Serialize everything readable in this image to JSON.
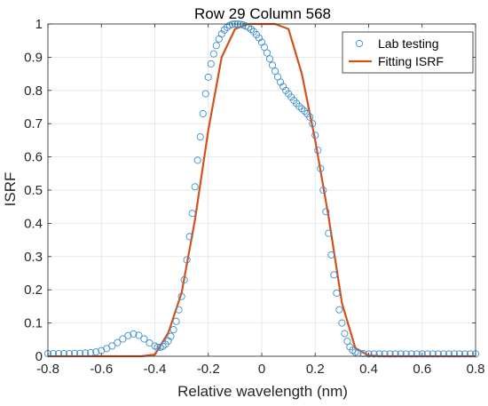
{
  "chart_data": {
    "type": "line",
    "title": "Row 29 Column 568",
    "xlabel": "Relative wavelength (nm)",
    "ylabel": "ISRF",
    "xlim": [
      -0.8,
      0.8
    ],
    "ylim": [
      0,
      1
    ],
    "xticks": [
      "-0.8",
      "-0.6",
      "-0.4",
      "-0.2",
      "0",
      "0.2",
      "0.4",
      "0.6",
      "0.8"
    ],
    "yticks": [
      "0",
      "0.1",
      "0.2",
      "0.3",
      "0.4",
      "0.5",
      "0.6",
      "0.7",
      "0.8",
      "0.9",
      "1"
    ],
    "grid": true,
    "legend_position": "top-right",
    "colors": {
      "lab": "#3d8ecb",
      "fit": "#d2511d"
    },
    "series": [
      {
        "name": "Lab testing",
        "marker": "circle",
        "x": [
          -0.8,
          -0.78,
          -0.76,
          -0.74,
          -0.72,
          -0.7,
          -0.68,
          -0.66,
          -0.64,
          -0.62,
          -0.6,
          -0.58,
          -0.56,
          -0.54,
          -0.52,
          -0.5,
          -0.48,
          -0.46,
          -0.44,
          -0.42,
          -0.4,
          -0.39,
          -0.38,
          -0.37,
          -0.36,
          -0.35,
          -0.34,
          -0.33,
          -0.32,
          -0.31,
          -0.3,
          -0.29,
          -0.28,
          -0.27,
          -0.26,
          -0.25,
          -0.24,
          -0.23,
          -0.22,
          -0.21,
          -0.2,
          -0.19,
          -0.18,
          -0.17,
          -0.16,
          -0.15,
          -0.14,
          -0.13,
          -0.12,
          -0.11,
          -0.1,
          -0.09,
          -0.08,
          -0.07,
          -0.06,
          -0.05,
          -0.04,
          -0.03,
          -0.02,
          -0.01,
          0.0,
          0.01,
          0.02,
          0.03,
          0.04,
          0.05,
          0.06,
          0.07,
          0.08,
          0.09,
          0.1,
          0.11,
          0.12,
          0.13,
          0.14,
          0.15,
          0.16,
          0.17,
          0.18,
          0.19,
          0.2,
          0.21,
          0.22,
          0.23,
          0.24,
          0.25,
          0.26,
          0.27,
          0.28,
          0.29,
          0.3,
          0.31,
          0.32,
          0.33,
          0.34,
          0.35,
          0.36,
          0.38,
          0.4,
          0.42,
          0.44,
          0.46,
          0.48,
          0.5,
          0.52,
          0.54,
          0.56,
          0.58,
          0.6,
          0.62,
          0.64,
          0.66,
          0.68,
          0.7,
          0.72,
          0.74,
          0.76,
          0.78,
          0.8
        ],
        "y": [
          0.008,
          0.008,
          0.008,
          0.008,
          0.008,
          0.009,
          0.009,
          0.01,
          0.011,
          0.013,
          0.017,
          0.023,
          0.031,
          0.041,
          0.052,
          0.062,
          0.067,
          0.063,
          0.052,
          0.04,
          0.031,
          0.027,
          0.027,
          0.03,
          0.036,
          0.046,
          0.06,
          0.08,
          0.105,
          0.14,
          0.18,
          0.23,
          0.29,
          0.36,
          0.43,
          0.51,
          0.59,
          0.66,
          0.73,
          0.79,
          0.84,
          0.88,
          0.91,
          0.935,
          0.955,
          0.97,
          0.982,
          0.99,
          0.996,
          0.999,
          1.0,
          1.0,
          0.999,
          0.997,
          0.994,
          0.99,
          0.984,
          0.977,
          0.968,
          0.958,
          0.945,
          0.93,
          0.913,
          0.895,
          0.876,
          0.858,
          0.841,
          0.825,
          0.812,
          0.8,
          0.79,
          0.78,
          0.77,
          0.761,
          0.752,
          0.745,
          0.738,
          0.73,
          0.72,
          0.7,
          0.665,
          0.62,
          0.565,
          0.5,
          0.435,
          0.37,
          0.305,
          0.245,
          0.19,
          0.14,
          0.1,
          0.068,
          0.045,
          0.028,
          0.018,
          0.012,
          0.009,
          0.008,
          0.007,
          0.007,
          0.007,
          0.007,
          0.007,
          0.007,
          0.007,
          0.007,
          0.007,
          0.007,
          0.007,
          0.007,
          0.007,
          0.007,
          0.007,
          0.007,
          0.007,
          0.007,
          0.007,
          0.007,
          0.007
        ]
      },
      {
        "name": "Fitting ISRF",
        "marker": "line",
        "x": [
          -0.8,
          -0.6,
          -0.5,
          -0.45,
          -0.4,
          -0.35,
          -0.3,
          -0.25,
          -0.2,
          -0.15,
          -0.1,
          -0.05,
          0.0,
          0.05,
          0.1,
          0.15,
          0.2,
          0.25,
          0.3,
          0.35,
          0.4,
          0.45,
          0.5,
          0.6,
          0.8
        ],
        "y": [
          0.0,
          0.0,
          0.0,
          0.0,
          0.005,
          0.07,
          0.19,
          0.41,
          0.68,
          0.9,
          0.985,
          1.0,
          1.0,
          1.0,
          0.985,
          0.85,
          0.65,
          0.42,
          0.16,
          0.025,
          0.002,
          0.0,
          0.0,
          0.0,
          0.0
        ]
      }
    ]
  }
}
